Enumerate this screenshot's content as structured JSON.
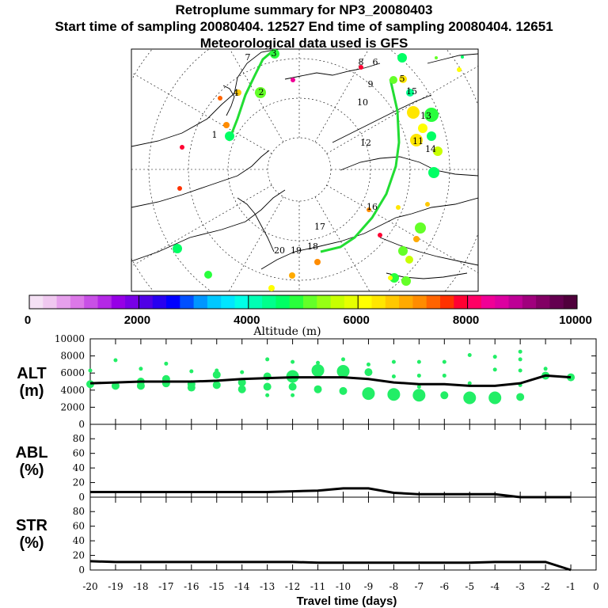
{
  "header": {
    "title": "Retroplume summary for NP3_20080403",
    "sampling": "Start time of sampling 20080404. 12527     End time of sampling 20080404. 12651",
    "met": "Meteorological data used is GFS"
  },
  "map": {
    "track_labels": [
      "1",
      "2",
      "3",
      "4",
      "5",
      "6",
      "7",
      "8",
      "9",
      "10",
      "11",
      "12",
      "13",
      "14",
      "15",
      "16",
      "17",
      "18",
      "19",
      "20"
    ],
    "colors": {
      "land_line": "#000000",
      "track": "#22dd33"
    }
  },
  "colorbar": {
    "label": "Altitude (m)",
    "ticks": [
      "0",
      "2000",
      "4000",
      "6000",
      "8000",
      "10000"
    ],
    "colors": [
      "#f5e1f5",
      "#f0c8f0",
      "#e6a0ec",
      "#dc78e8",
      "#c850e6",
      "#b428e6",
      "#9600e6",
      "#7800e6",
      "#5000e6",
      "#2800f0",
      "#0000ff",
      "#0050ff",
      "#0096ff",
      "#00c8ff",
      "#00e6ff",
      "#00ffe6",
      "#00ffb4",
      "#00ff8c",
      "#00ff64",
      "#28ff3c",
      "#64ff28",
      "#96ff14",
      "#c8ff00",
      "#e6ff00",
      "#ffff00",
      "#ffe600",
      "#ffc800",
      "#ffaa00",
      "#ff8c00",
      "#ff6400",
      "#ff3200",
      "#ff0032",
      "#ff0064",
      "#f00096",
      "#dc00a0",
      "#be0096",
      "#a0007d",
      "#820064",
      "#640050",
      "#50003c"
    ]
  },
  "chart_data": [
    {
      "type": "line",
      "name": "ALT",
      "ylabel": "ALT\n(m)",
      "ylim": [
        0,
        10000
      ],
      "yticks": [
        "0",
        "2000",
        "4000",
        "6000",
        "8000",
        "10000"
      ],
      "x": [
        -20,
        -19,
        -18,
        -17,
        -16,
        -15,
        -14,
        -13,
        -12,
        -11,
        -10,
        -9,
        -8,
        -7,
        -6,
        -5,
        -4,
        -3,
        -2,
        -1
      ],
      "values": [
        4800,
        4900,
        5000,
        5000,
        5000,
        5100,
        5300,
        5400,
        5500,
        5500,
        5500,
        5300,
        4900,
        4700,
        4700,
        4500,
        4500,
        4800,
        5700,
        5500
      ],
      "scatter": [
        {
          "x": -20,
          "y": 4700,
          "s": 2
        },
        {
          "x": -20,
          "y": 6300,
          "s": 1
        },
        {
          "x": -19,
          "y": 4500,
          "s": 2
        },
        {
          "x": -19,
          "y": 7500,
          "s": 1
        },
        {
          "x": -18,
          "y": 4500,
          "s": 2
        },
        {
          "x": -18,
          "y": 5000,
          "s": 2
        },
        {
          "x": -18,
          "y": 6500,
          "s": 1
        },
        {
          "x": -17,
          "y": 4800,
          "s": 2
        },
        {
          "x": -17,
          "y": 5300,
          "s": 2
        },
        {
          "x": -17,
          "y": 7100,
          "s": 1
        },
        {
          "x": -16,
          "y": 4300,
          "s": 2
        },
        {
          "x": -16,
          "y": 4700,
          "s": 2
        },
        {
          "x": -16,
          "y": 6200,
          "s": 1
        },
        {
          "x": -15,
          "y": 4600,
          "s": 2
        },
        {
          "x": -15,
          "y": 5800,
          "s": 2
        },
        {
          "x": -15,
          "y": 6300,
          "s": 1
        },
        {
          "x": -14,
          "y": 4100,
          "s": 2
        },
        {
          "x": -14,
          "y": 4900,
          "s": 2
        },
        {
          "x": -14,
          "y": 6100,
          "s": 1
        },
        {
          "x": -13,
          "y": 3400,
          "s": 1
        },
        {
          "x": -13,
          "y": 4400,
          "s": 2
        },
        {
          "x": -13,
          "y": 5600,
          "s": 2
        },
        {
          "x": -13,
          "y": 7600,
          "s": 1
        },
        {
          "x": -12,
          "y": 3400,
          "s": 1
        },
        {
          "x": -12,
          "y": 4400,
          "s": 2
        },
        {
          "x": -12,
          "y": 5600,
          "s": 3
        },
        {
          "x": -12,
          "y": 7300,
          "s": 1
        },
        {
          "x": -11,
          "y": 4100,
          "s": 2
        },
        {
          "x": -11,
          "y": 6300,
          "s": 3
        },
        {
          "x": -11,
          "y": 7200,
          "s": 1
        },
        {
          "x": -10,
          "y": 3900,
          "s": 2
        },
        {
          "x": -10,
          "y": 6200,
          "s": 3
        },
        {
          "x": -10,
          "y": 7600,
          "s": 1
        },
        {
          "x": -9,
          "y": 3600,
          "s": 3
        },
        {
          "x": -9,
          "y": 6100,
          "s": 2
        },
        {
          "x": -9,
          "y": 7000,
          "s": 1
        },
        {
          "x": -8,
          "y": 3500,
          "s": 3
        },
        {
          "x": -8,
          "y": 5600,
          "s": 1
        },
        {
          "x": -8,
          "y": 7300,
          "s": 1
        },
        {
          "x": -7,
          "y": 3400,
          "s": 3
        },
        {
          "x": -7,
          "y": 4400,
          "s": 1
        },
        {
          "x": -7,
          "y": 5700,
          "s": 1
        },
        {
          "x": -7,
          "y": 7300,
          "s": 1
        },
        {
          "x": -6,
          "y": 3400,
          "s": 2
        },
        {
          "x": -6,
          "y": 5700,
          "s": 1
        },
        {
          "x": -6,
          "y": 7300,
          "s": 1
        },
        {
          "x": -5,
          "y": 3100,
          "s": 3
        },
        {
          "x": -5,
          "y": 4800,
          "s": 1
        },
        {
          "x": -5,
          "y": 8100,
          "s": 1
        },
        {
          "x": -4,
          "y": 3100,
          "s": 3
        },
        {
          "x": -4,
          "y": 6400,
          "s": 1
        },
        {
          "x": -4,
          "y": 7900,
          "s": 1
        },
        {
          "x": -3,
          "y": 3200,
          "s": 2
        },
        {
          "x": -3,
          "y": 4600,
          "s": 1
        },
        {
          "x": -3,
          "y": 6300,
          "s": 1
        },
        {
          "x": -3,
          "y": 7600,
          "s": 1
        },
        {
          "x": -3,
          "y": 8500,
          "s": 1
        },
        {
          "x": -2,
          "y": 5700,
          "s": 2
        },
        {
          "x": -2,
          "y": 6500,
          "s": 1
        },
        {
          "x": -1,
          "y": 5500,
          "s": 2
        }
      ]
    },
    {
      "type": "line",
      "name": "ABL",
      "ylabel": "ABL\n(%)",
      "ylim": [
        0,
        90
      ],
      "yticks": [
        "0",
        "20",
        "40",
        "60",
        "80"
      ],
      "x": [
        -20,
        -19,
        -18,
        -17,
        -16,
        -15,
        -14,
        -13,
        -12,
        -11,
        -10,
        -9,
        -8,
        -7,
        -6,
        -5,
        -4,
        -3,
        -2,
        -1
      ],
      "values": [
        7,
        7,
        7,
        7,
        7,
        7,
        7,
        7,
        8,
        9,
        12,
        12,
        6,
        4,
        4,
        4,
        4,
        0,
        0,
        0
      ]
    },
    {
      "type": "line",
      "name": "STR",
      "ylabel": "STR\n(%)",
      "ylim": [
        0,
        90
      ],
      "yticks": [
        "0",
        "20",
        "40",
        "60",
        "80"
      ],
      "x": [
        -20,
        -19,
        -18,
        -17,
        -16,
        -15,
        -14,
        -13,
        -12,
        -11,
        -10,
        -9,
        -8,
        -7,
        -6,
        -5,
        -4,
        -3,
        -2,
        -1
      ],
      "values": [
        12,
        11,
        11,
        11,
        11,
        11,
        11,
        11,
        11,
        10,
        10,
        10,
        10,
        10,
        10,
        10,
        11,
        11,
        11,
        0
      ],
      "xlabel": "Travel time (days)",
      "xticks": [
        "-20",
        "-19",
        "-18",
        "-17",
        "-16",
        "-15",
        "-14",
        "-13",
        "-12",
        "-11",
        "-10",
        "-9",
        "-8",
        "-7",
        "-6",
        "-5",
        "-4",
        "-3",
        "-2",
        "-1",
        "0"
      ]
    }
  ]
}
